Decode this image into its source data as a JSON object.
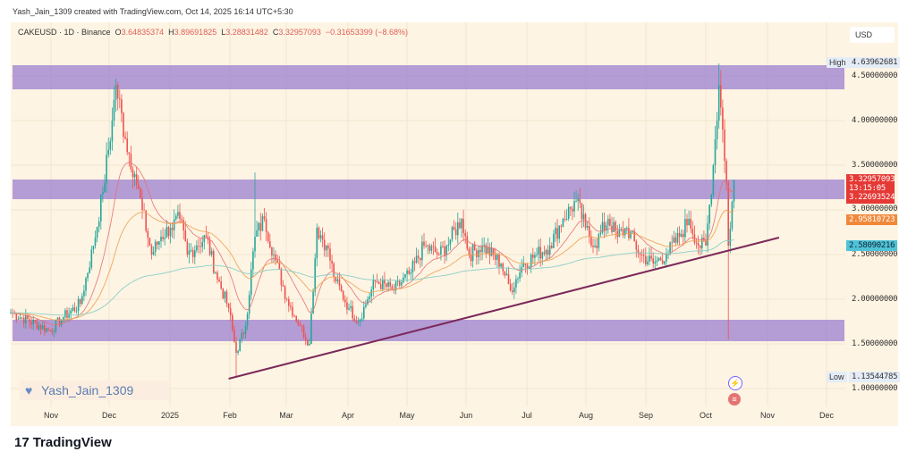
{
  "credit": "Yash_Jain_1309 created with TradingView.com, Oct 14, 2025 16:14 UTC+5:30",
  "legend": {
    "symbol": "CAKEUSD · 1D · Binance",
    "o_label": "O",
    "o": "3.64835374",
    "h_label": "H",
    "h": "3.89691825",
    "l_label": "L",
    "l": "3.28831482",
    "c_label": "C",
    "c": "3.32957093",
    "change": "−0.31653399 (−8.68%)"
  },
  "currency": "USD",
  "price_axis": [
    "4.50000000",
    "4.00000000",
    "3.50000000",
    "3.00000000",
    "2.50000000",
    "2.00000000",
    "1.50000000",
    "1.00000000"
  ],
  "tags": {
    "high_label": "High",
    "high": "4.63962681",
    "last_price": "3.32957093",
    "countdown": "13:15:05",
    "ma1": "3.22693524",
    "ma2": "2.95810723",
    "ma3": "2.58090216",
    "low_label": "Low",
    "low": "1.13544785"
  },
  "time_axis": [
    "Nov",
    "Dec",
    "2025",
    "Feb",
    "Mar",
    "Apr",
    "May",
    "Jun",
    "Jul",
    "Aug",
    "Sep",
    "Oct",
    "Nov",
    "Dec"
  ],
  "watermark": "Yash_Jain_1309",
  "footer": {
    "logo": "17",
    "brand": "TradingView"
  },
  "colors": {
    "up": "#26a69a",
    "down": "#ef5350",
    "zone": "#9b7fd0",
    "trendline": "#7b2a5a",
    "ma_fast": "#e57373",
    "ma_mid": "#f0a050",
    "ma_slow": "#80cbc4"
  },
  "chart_data": {
    "type": "candlestick",
    "title": "CAKEUSD · 1D · Binance",
    "ylim": [
      0.6,
      5.0
    ],
    "key_closes_day_price": [
      [
        0,
        1.85
      ],
      [
        21,
        1.65
      ],
      [
        28,
        1.8
      ],
      [
        37,
        1.95
      ],
      [
        44,
        2.6
      ],
      [
        49,
        3.2
      ],
      [
        54,
        4.0
      ],
      [
        56,
        4.4
      ],
      [
        61,
        3.8
      ],
      [
        66,
        3.4
      ],
      [
        70,
        3.0
      ],
      [
        75,
        2.5
      ],
      [
        80,
        2.7
      ],
      [
        85,
        2.8
      ],
      [
        90,
        2.9
      ],
      [
        94,
        2.5
      ],
      [
        99,
        2.6
      ],
      [
        104,
        2.7
      ],
      [
        109,
        2.3
      ],
      [
        116,
        1.9
      ],
      [
        120,
        1.4
      ],
      [
        125,
        1.7
      ],
      [
        130,
        2.7
      ],
      [
        135,
        2.9
      ],
      [
        140,
        2.5
      ],
      [
        147,
        2.0
      ],
      [
        154,
        1.7
      ],
      [
        159,
        1.5
      ],
      [
        163,
        2.8
      ],
      [
        168,
        2.6
      ],
      [
        173,
        2.2
      ],
      [
        180,
        1.9
      ],
      [
        185,
        1.75
      ],
      [
        190,
        2.0
      ],
      [
        194,
        2.2
      ],
      [
        204,
        2.1
      ],
      [
        213,
        2.3
      ],
      [
        220,
        2.6
      ],
      [
        228,
        2.5
      ],
      [
        232,
        2.6
      ],
      [
        240,
        2.9
      ],
      [
        244,
        2.5
      ],
      [
        251,
        2.6
      ],
      [
        261,
        2.4
      ],
      [
        266,
        2.1
      ],
      [
        273,
        2.4
      ],
      [
        280,
        2.5
      ],
      [
        287,
        2.6
      ],
      [
        294,
        2.9
      ],
      [
        301,
        3.1
      ],
      [
        306,
        2.8
      ],
      [
        311,
        2.6
      ],
      [
        318,
        2.9
      ],
      [
        323,
        2.7
      ],
      [
        328,
        2.8
      ],
      [
        335,
        2.5
      ],
      [
        342,
        2.4
      ],
      [
        349,
        2.5
      ],
      [
        356,
        2.7
      ],
      [
        361,
        2.9
      ],
      [
        366,
        2.6
      ],
      [
        370,
        2.6
      ],
      [
        374,
        3.5
      ],
      [
        377,
        4.4
      ],
      [
        379,
        3.9
      ],
      [
        381,
        3.3
      ],
      [
        382,
        2.6
      ],
      [
        385,
        3.33
      ]
    ],
    "zones": [
      [
        4.35,
        4.62
      ],
      [
        3.12,
        3.34
      ],
      [
        1.53,
        1.77
      ]
    ],
    "trendline": {
      "start": [
        116,
        1.11
      ],
      "end": [
        409,
        2.69
      ]
    },
    "high": 4.63962681,
    "low": 1.13544785
  }
}
